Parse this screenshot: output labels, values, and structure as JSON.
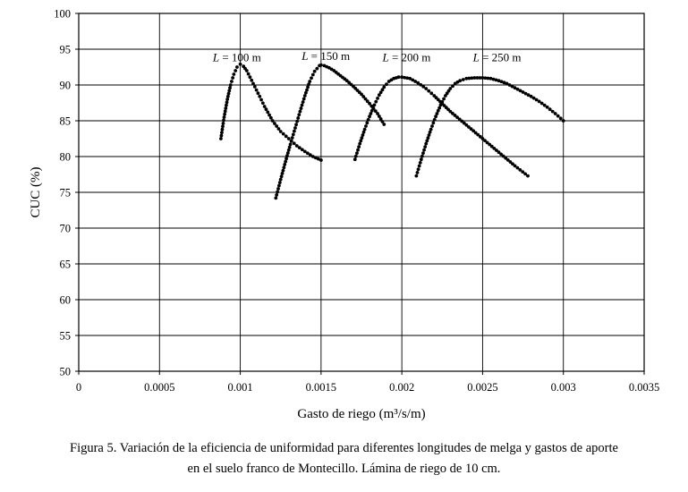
{
  "chart_data": {
    "type": "scatter",
    "xlabel": "Gasto de riego (m³/s/m)",
    "ylabel": "CUC (%)",
    "xlim": [
      0,
      0.0035
    ],
    "ylim": [
      50,
      100
    ],
    "x_ticks": [
      "0",
      "0.0005",
      "0.001",
      "0.0015",
      "0.002",
      "0.0025",
      "0.003",
      "0.0035"
    ],
    "y_ticks": [
      "50",
      "55",
      "60",
      "65",
      "70",
      "75",
      "80",
      "85",
      "90",
      "95",
      "100"
    ],
    "x_tick_values": [
      0,
      0.0005,
      0.001,
      0.0015,
      0.002,
      0.0025,
      0.003,
      0.0035
    ],
    "y_tick_values": [
      50,
      55,
      60,
      65,
      70,
      75,
      80,
      85,
      90,
      95,
      100
    ],
    "grid": true,
    "marker_color": "#000000",
    "series": [
      {
        "name": "L = 100 m",
        "label_prefix": "L",
        "label_suffix": " = 100 m",
        "label_anchor": [
          0.00083,
          93.8
        ],
        "x": [
          0.00088,
          0.0009,
          0.00092,
          0.00094,
          0.00096,
          0.00098,
          0.001,
          0.00102,
          0.00104,
          0.00106,
          0.00108,
          0.0011,
          0.00112,
          0.00115,
          0.0012,
          0.00125,
          0.0013,
          0.00135,
          0.0014,
          0.00145,
          0.0015
        ],
        "y": [
          82.5,
          85.5,
          88.0,
          90.0,
          91.5,
          92.5,
          92.9,
          92.6,
          92.0,
          91.1,
          90.2,
          89.3,
          88.4,
          87.0,
          85.0,
          83.5,
          82.5,
          81.5,
          80.7,
          80.0,
          79.5
        ]
      },
      {
        "name": "L = 150 m",
        "label_prefix": "L",
        "label_suffix": " = 150 m",
        "label_anchor": [
          0.00138,
          94.0
        ],
        "x": [
          0.00122,
          0.00125,
          0.00128,
          0.00131,
          0.00134,
          0.00137,
          0.0014,
          0.00143,
          0.00146,
          0.00149,
          0.0015,
          0.00152,
          0.00155,
          0.00158,
          0.00162,
          0.00166,
          0.0017,
          0.00175,
          0.0018,
          0.00185,
          0.00189
        ],
        "y": [
          74.2,
          76.8,
          79.3,
          81.7,
          84.0,
          86.3,
          88.5,
          90.5,
          91.9,
          92.7,
          92.8,
          92.7,
          92.4,
          92.0,
          91.3,
          90.6,
          89.8,
          88.7,
          87.4,
          86.0,
          84.5
        ]
      },
      {
        "name": "L = 200 m",
        "label_prefix": "L",
        "label_suffix": " = 200 m",
        "label_anchor": [
          0.00188,
          93.8
        ],
        "x": [
          0.00171,
          0.00174,
          0.00177,
          0.0018,
          0.00183,
          0.00186,
          0.00189,
          0.00192,
          0.00195,
          0.00198,
          0.002,
          0.00205,
          0.0021,
          0.00215,
          0.0022,
          0.00225,
          0.0023,
          0.0024,
          0.0025,
          0.0026,
          0.0027,
          0.00278
        ],
        "y": [
          79.6,
          81.8,
          83.8,
          85.6,
          87.2,
          88.6,
          89.7,
          90.5,
          90.9,
          91.1,
          91.1,
          90.9,
          90.3,
          89.5,
          88.5,
          87.4,
          86.3,
          84.4,
          82.5,
          80.6,
          78.7,
          77.3
        ]
      },
      {
        "name": "L = 250 m",
        "label_prefix": "L",
        "label_suffix": " = 250 m",
        "label_anchor": [
          0.00244,
          93.8
        ],
        "x": [
          0.00209,
          0.00212,
          0.00215,
          0.00218,
          0.00221,
          0.00224,
          0.00227,
          0.0023,
          0.00233,
          0.00236,
          0.0024,
          0.00245,
          0.0025,
          0.00255,
          0.0026,
          0.00265,
          0.0027,
          0.00275,
          0.0028,
          0.00285,
          0.0029,
          0.00295,
          0.003
        ],
        "y": [
          77.3,
          79.6,
          81.8,
          83.8,
          85.6,
          87.2,
          88.5,
          89.5,
          90.2,
          90.6,
          90.9,
          91.0,
          91.0,
          90.9,
          90.6,
          90.2,
          89.6,
          89.0,
          88.4,
          87.7,
          86.9,
          86.0,
          85.0
        ]
      }
    ]
  },
  "caption": {
    "line1": "Figura 5. Variación de la eficiencia de uniformidad para diferentes longitudes de melga y gastos de aporte",
    "line2": "en el suelo franco de Montecillo. Lámina de riego de 10 cm."
  }
}
